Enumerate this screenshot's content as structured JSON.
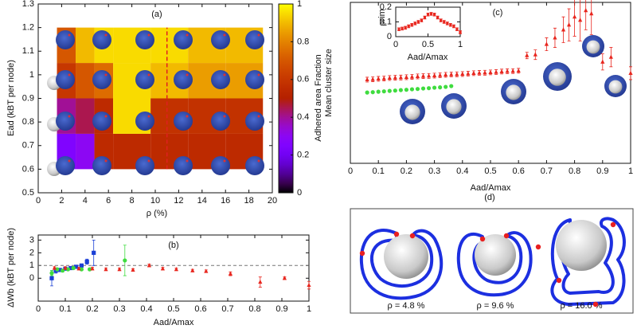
{
  "chart_data": [
    {
      "type": "heatmap",
      "title": "(a)",
      "xlabel": "ρ (%)",
      "ylabel": "Ead (kBT per node)",
      "colorbar_label": "Adhered area Fraction",
      "colormap": "gnuplot",
      "x_edges": [
        1.6,
        3.2,
        4.8,
        6.4,
        9.6,
        12.8,
        16,
        19.2
      ],
      "y_edges": [
        0.6,
        0.75,
        0.9,
        1.05,
        1.2
      ],
      "z": [
        [
          0.25,
          0.3,
          0.55,
          0.55,
          0.55,
          0.55,
          0.55
        ],
        [
          0.4,
          0.45,
          0.55,
          0.95,
          0.58,
          0.58,
          0.58
        ],
        [
          0.6,
          0.7,
          0.75,
          0.95,
          0.9,
          0.85,
          0.85
        ],
        [
          0.7,
          0.9,
          0.95,
          0.95,
          0.95,
          0.9,
          0.9
        ]
      ],
      "vline": 11,
      "xlim": [
        0,
        20
      ],
      "xticks": [
        0,
        2,
        4,
        6,
        8,
        10,
        12,
        14,
        16,
        18,
        20
      ],
      "ylim": [
        0.5,
        1.3
      ],
      "yticks": [
        0.5,
        0.6,
        0.7,
        0.8,
        0.9,
        1,
        1.1,
        1.2,
        1.3
      ],
      "clim": [
        0,
        1
      ],
      "cticks": [
        0,
        0.2,
        0.4,
        0.6,
        0.8,
        1
      ]
    },
    {
      "type": "errorscatter",
      "title": "(b)",
      "xlabel": "Aad/Amax",
      "ylabel": "ΔWb (kBT per node)",
      "reference_line": 1,
      "xlim": [
        0,
        1
      ],
      "xticks": [
        0,
        0.1,
        0.2,
        0.3,
        0.4,
        0.5,
        0.6,
        0.7,
        0.8,
        0.9,
        1
      ],
      "ylim": [
        -1.8,
        3.4
      ],
      "yticks": [
        0,
        1,
        2,
        3
      ],
      "series": [
        {
          "color": "#1a3fd6",
          "marker": "square",
          "x": [
            0.05,
            0.065,
            0.08,
            0.1,
            0.12,
            0.14,
            0.16,
            0.18,
            0.205
          ],
          "values": [
            0,
            0.6,
            0.65,
            0.75,
            0.8,
            0.9,
            1.0,
            1.3,
            2.0
          ],
          "errors": [
            0.6,
            0.2,
            0.1,
            0.1,
            0.1,
            0.1,
            0.1,
            0.2,
            1.0
          ]
        },
        {
          "color": "#3fdc3f",
          "marker": "circle",
          "x": [
            0.05,
            0.07,
            0.09,
            0.11,
            0.13,
            0.16,
            0.19,
            0.32
          ],
          "values": [
            0.4,
            0.7,
            0.6,
            0.7,
            0.8,
            0.7,
            0.7,
            1.4
          ],
          "errors": [
            0.2,
            0.1,
            0.1,
            0.1,
            0.1,
            0.1,
            0.1,
            1.2
          ]
        },
        {
          "color": "#e8261e",
          "marker": "triangle",
          "x": [
            0.06,
            0.1,
            0.15,
            0.2,
            0.25,
            0.3,
            0.35,
            0.41,
            0.46,
            0.51,
            0.57,
            0.62,
            0.71,
            0.82,
            0.91,
            1.0
          ],
          "values": [
            0.8,
            0.8,
            0.75,
            0.75,
            0.7,
            0.7,
            0.65,
            1.0,
            0.75,
            0.7,
            0.6,
            0.55,
            0.35,
            -0.3,
            0,
            -0.55
          ],
          "errors": [
            0.1,
            0.1,
            0.1,
            0.1,
            0.1,
            0.1,
            0.1,
            0.1,
            0.1,
            0.1,
            0.1,
            0.1,
            0.15,
            0.4,
            0.1,
            0.3
          ]
        }
      ]
    },
    {
      "type": "errorscatter",
      "title": "(c)",
      "xlabel": "Aad/Amax",
      "ylabel": "Mean cluster size",
      "xlim": [
        0,
        1
      ],
      "xticks": [
        0,
        0.1,
        0.2,
        0.3,
        0.4,
        0.5,
        0.6,
        0.7,
        0.8,
        0.9,
        1
      ],
      "ylim": [
        0,
        10
      ],
      "series": [
        {
          "color": "#e8261e",
          "marker": "triangle",
          "x": [
            0.06,
            0.08,
            0.1,
            0.12,
            0.14,
            0.16,
            0.18,
            0.2,
            0.22,
            0.24,
            0.26,
            0.28,
            0.3,
            0.32,
            0.34,
            0.36,
            0.38,
            0.4,
            0.42,
            0.44,
            0.46,
            0.48,
            0.5,
            0.52,
            0.54,
            0.56,
            0.58,
            0.6,
            0.63,
            0.66,
            0.7,
            0.73,
            0.76,
            0.78,
            0.8,
            0.82,
            0.84,
            0.86,
            0.9,
            0.93,
            1.0
          ],
          "values": [
            5.2,
            5.22,
            5.25,
            5.27,
            5.3,
            5.32,
            5.33,
            5.35,
            5.37,
            5.4,
            5.42,
            5.43,
            5.45,
            5.47,
            5.5,
            5.52,
            5.53,
            5.55,
            5.57,
            5.6,
            5.62,
            5.63,
            5.65,
            5.67,
            5.7,
            5.72,
            5.73,
            5.75,
            6.7,
            6.75,
            7.4,
            7.8,
            8.3,
            8.6,
            9.1,
            8.9,
            9.5,
            9.3,
            6.3,
            6.6,
            5.6
          ],
          "errors": [
            0.15,
            0.15,
            0.15,
            0.15,
            0.15,
            0.15,
            0.15,
            0.15,
            0.15,
            0.15,
            0.15,
            0.15,
            0.15,
            0.15,
            0.15,
            0.15,
            0.15,
            0.15,
            0.15,
            0.15,
            0.15,
            0.15,
            0.15,
            0.15,
            0.15,
            0.15,
            0.15,
            0.15,
            0.2,
            0.3,
            0.4,
            0.6,
            0.8,
            1.0,
            1.2,
            1.3,
            1.2,
            1.3,
            0.5,
            0.6,
            0.4
          ]
        },
        {
          "color": "#3fdc3f",
          "marker": "circle",
          "x": [
            0.06,
            0.08,
            0.1,
            0.12,
            0.14,
            0.16,
            0.18,
            0.2,
            0.22,
            0.24,
            0.26,
            0.28,
            0.3,
            0.32,
            0.34,
            0.36
          ],
          "values": [
            4.4,
            4.42,
            4.45,
            4.47,
            4.5,
            4.52,
            4.55,
            4.57,
            4.6,
            4.62,
            4.65,
            4.67,
            4.7,
            4.72,
            4.75,
            4.8
          ]
        }
      ]
    },
    {
      "type": "errorscatter",
      "xlabel": "Aad/Amax",
      "ylabel": "ρrim",
      "xlim": [
        0,
        1
      ],
      "xticks": [
        0,
        0.5,
        1
      ],
      "ylim": [
        0,
        0.2
      ],
      "yticks": [
        0,
        0.1,
        0.2
      ],
      "series": [
        {
          "color": "#e8261e",
          "marker": "square",
          "x": [
            0.05,
            0.1,
            0.15,
            0.2,
            0.25,
            0.3,
            0.35,
            0.4,
            0.45,
            0.5,
            0.55,
            0.6,
            0.65,
            0.7,
            0.75,
            0.8,
            0.85,
            0.9,
            0.95,
            1.0
          ],
          "values": [
            0.05,
            0.055,
            0.06,
            0.07,
            0.08,
            0.09,
            0.1,
            0.11,
            0.13,
            0.15,
            0.155,
            0.15,
            0.13,
            0.11,
            0.1,
            0.09,
            0.08,
            0.07,
            0.05,
            0.03
          ],
          "errors": [
            0.01,
            0.01,
            0.01,
            0.01,
            0.01,
            0.01,
            0.01,
            0.01,
            0.01,
            0.01,
            0.01,
            0.01,
            0.01,
            0.01,
            0.01,
            0.01,
            0.01,
            0.01,
            0.01,
            0.01
          ]
        }
      ]
    },
    {
      "type": "snapshots",
      "title": "(d)",
      "labels": [
        "ρ = 4.8 %",
        "ρ = 9.6 %",
        "ρ = 16.0 %"
      ]
    }
  ]
}
